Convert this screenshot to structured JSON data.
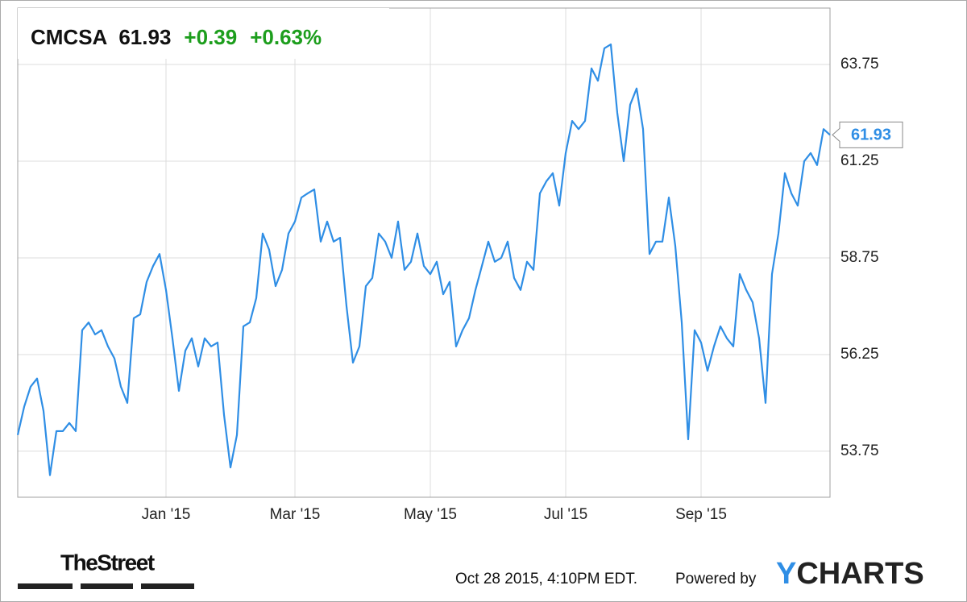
{
  "header": {
    "symbol": "CMCSA",
    "price": "61.93",
    "change": "+0.39",
    "change_pct": "+0.63%"
  },
  "chart_data": {
    "type": "line",
    "color": "#2f8ee5",
    "grid": true,
    "categories": [
      null,
      null,
      null,
      null,
      null,
      null,
      null,
      null,
      null,
      null,
      null,
      null,
      null,
      null,
      null,
      null,
      null,
      null,
      null,
      null,
      null,
      null,
      null,
      "Jan '15",
      null,
      null,
      null,
      null,
      null,
      null,
      null,
      null,
      null,
      null,
      null,
      null,
      null,
      null,
      null,
      null,
      null,
      null,
      null,
      "Mar '15",
      null,
      null,
      null,
      null,
      null,
      null,
      null,
      null,
      null,
      null,
      null,
      null,
      null,
      null,
      null,
      null,
      null,
      null,
      null,
      null,
      "May '15",
      null,
      null,
      null,
      null,
      null,
      null,
      null,
      null,
      null,
      null,
      null,
      null,
      null,
      null,
      null,
      null,
      null,
      null,
      null,
      null,
      "Jul '15",
      null,
      null,
      null,
      null,
      null,
      null,
      null,
      null,
      null,
      null,
      null,
      null,
      null,
      null,
      null,
      null,
      null,
      null,
      null,
      null,
      "Sep '15",
      null,
      null,
      null,
      null,
      null,
      null,
      null,
      null,
      null,
      null,
      null,
      null,
      null,
      null,
      null,
      null,
      null,
      null,
      null,
      null
    ],
    "values": [
      54.17,
      54.9,
      55.42,
      55.63,
      54.79,
      53.13,
      54.27,
      54.27,
      54.48,
      54.27,
      56.88,
      57.08,
      56.77,
      56.88,
      56.46,
      56.15,
      55.42,
      55.0,
      57.19,
      57.29,
      58.13,
      58.54,
      58.85,
      57.92,
      56.67,
      55.31,
      56.35,
      56.67,
      55.94,
      56.67,
      56.46,
      56.56,
      54.69,
      53.33,
      54.17,
      56.98,
      57.08,
      57.71,
      59.38,
      58.96,
      58.02,
      58.44,
      59.38,
      59.69,
      60.31,
      60.42,
      60.52,
      59.17,
      59.69,
      59.17,
      59.27,
      57.5,
      56.04,
      56.46,
      58.02,
      58.23,
      59.38,
      59.17,
      58.75,
      59.69,
      58.44,
      58.65,
      59.38,
      58.54,
      58.33,
      58.65,
      57.81,
      58.13,
      56.46,
      56.88,
      57.19,
      57.92,
      58.54,
      59.17,
      58.65,
      58.75,
      59.17,
      58.23,
      57.92,
      58.65,
      58.44,
      60.42,
      60.73,
      60.94,
      60.1,
      61.46,
      62.29,
      62.08,
      62.29,
      63.65,
      63.33,
      64.17,
      64.27,
      62.5,
      61.25,
      62.71,
      63.13,
      62.08,
      58.85,
      59.17,
      59.17,
      60.31,
      59.06,
      57.08,
      54.06,
      56.88,
      56.56,
      55.83,
      56.46,
      56.98,
      56.67,
      56.46,
      58.33,
      57.92,
      57.6,
      56.67,
      55.0,
      58.33,
      59.38,
      60.94,
      60.42,
      60.1,
      61.25,
      61.46,
      61.15,
      62.08,
      61.93
    ],
    "ylim": [
      52.56,
      65.21
    ],
    "yticks": [
      53.75,
      56.25,
      58.75,
      61.25,
      63.75
    ]
  },
  "footer": {
    "source": "TheStreet",
    "timestamp": "Oct 28 2015, 4:10PM EDT.",
    "powered": "Powered by",
    "brand_y": "Y",
    "brand_rest": "CHARTS"
  }
}
